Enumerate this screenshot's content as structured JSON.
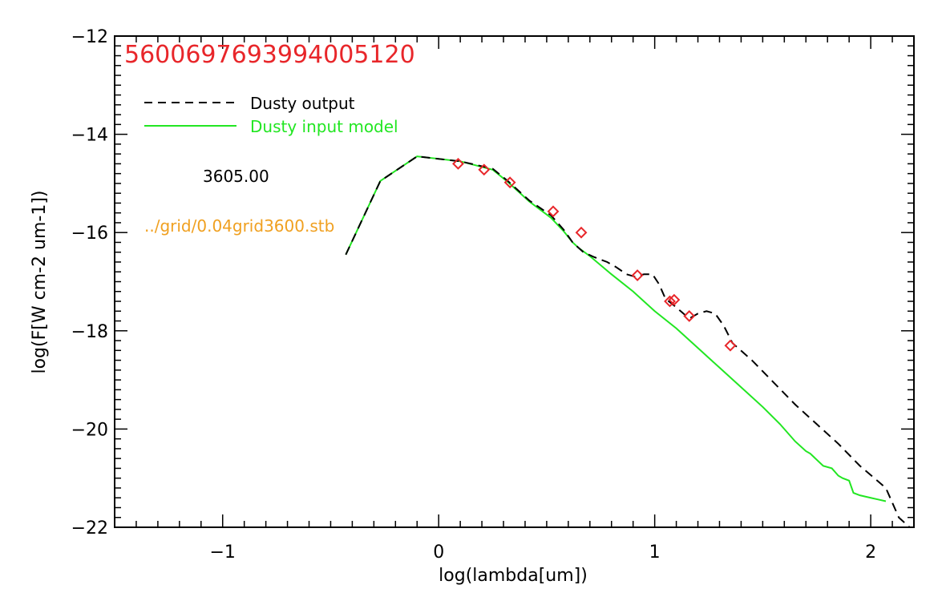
{
  "chart_data": {
    "type": "line",
    "title": "5600697693994005120",
    "xlabel": "log(lambda[um])",
    "ylabel": "log(F[W cm-2 um-1])",
    "xlim": [
      -1.5,
      2.2
    ],
    "ylim": [
      -22,
      -12
    ],
    "xticks": [
      -1,
      0,
      1,
      2
    ],
    "xtick_labels": [
      "−1",
      "0",
      "1",
      "2"
    ],
    "yticks": [
      -22,
      -20,
      -18,
      -16,
      -14,
      -12
    ],
    "ytick_labels": [
      "−22",
      "−20",
      "−18",
      "−16",
      "−14",
      "−12"
    ],
    "grid": false,
    "legend_position": "top-left",
    "annotations": {
      "temperature": "3605.00",
      "grid_file": "../grid/0.04grid3600.stb"
    },
    "colors": {
      "title": "#e8262a",
      "output": "#000000",
      "model": "#22e622",
      "points": "#e8262a",
      "grid_file": "#f0a020"
    },
    "series": [
      {
        "name": "Dusty output",
        "style": "dashed",
        "x": [
          -0.43,
          -0.27,
          -0.1,
          0.1,
          0.25,
          0.32,
          0.42,
          0.52,
          0.58,
          0.62,
          0.67,
          0.72,
          0.78,
          0.82,
          0.87,
          0.91,
          0.95,
          0.99,
          1.02,
          1.05,
          1.08,
          1.12,
          1.16,
          1.2,
          1.24,
          1.28,
          1.32,
          1.36,
          1.45,
          1.55,
          1.65,
          1.75,
          1.85,
          1.95,
          2.03,
          2.07,
          2.1,
          2.13,
          2.18
        ],
        "y": [
          -16.45,
          -14.95,
          -14.45,
          -14.55,
          -14.7,
          -14.95,
          -15.35,
          -15.65,
          -15.95,
          -16.2,
          -16.4,
          -16.5,
          -16.6,
          -16.7,
          -16.85,
          -16.9,
          -16.85,
          -16.85,
          -17.05,
          -17.35,
          -17.45,
          -17.6,
          -17.75,
          -17.65,
          -17.6,
          -17.65,
          -17.9,
          -18.25,
          -18.6,
          -19.05,
          -19.5,
          -19.9,
          -20.3,
          -20.75,
          -21.05,
          -21.2,
          -21.5,
          -21.8,
          -22.0
        ]
      },
      {
        "name": "Dusty input model",
        "style": "solid",
        "x": [
          -0.43,
          -0.27,
          -0.1,
          0.1,
          0.25,
          0.32,
          0.42,
          0.52,
          0.58,
          0.62,
          0.65,
          0.7,
          0.8,
          0.9,
          1.0,
          1.1,
          1.2,
          1.3,
          1.4,
          1.5,
          1.58,
          1.65,
          1.7,
          1.72,
          1.78,
          1.82,
          1.85,
          1.87,
          1.9,
          1.92,
          1.95,
          2.0,
          2.03,
          2.07
        ],
        "y": [
          -16.45,
          -14.95,
          -14.45,
          -14.55,
          -14.72,
          -14.97,
          -15.37,
          -15.7,
          -15.98,
          -16.2,
          -16.32,
          -16.48,
          -16.85,
          -17.2,
          -17.6,
          -17.95,
          -18.35,
          -18.75,
          -19.15,
          -19.55,
          -19.9,
          -20.25,
          -20.45,
          -20.5,
          -20.75,
          -20.8,
          -20.95,
          -21.0,
          -21.05,
          -21.3,
          -21.35,
          -21.4,
          -21.43,
          -21.47
        ]
      }
    ],
    "points": {
      "name": "photometry",
      "marker": "diamond",
      "x": [
        0.09,
        0.21,
        0.33,
        0.53,
        0.66,
        0.92,
        1.07,
        1.09,
        1.16,
        1.35
      ],
      "y": [
        -14.6,
        -14.72,
        -14.98,
        -15.57,
        -16.0,
        -16.87,
        -17.4,
        -17.37,
        -17.7,
        -18.3
      ]
    }
  }
}
